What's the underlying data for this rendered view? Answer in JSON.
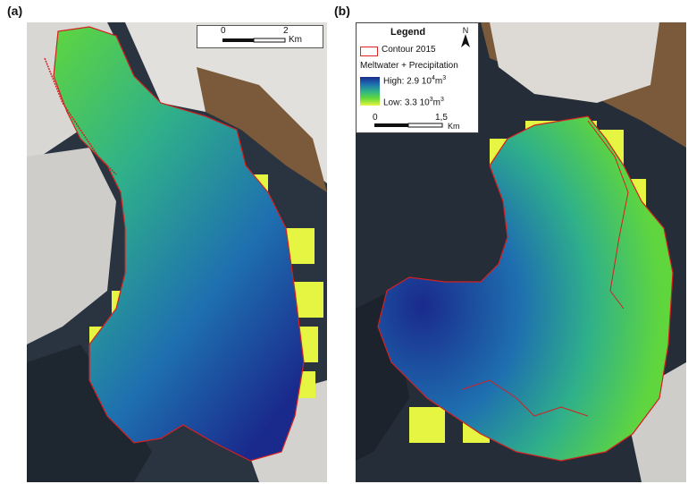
{
  "panels": [
    {
      "label": "(a)",
      "scalebar": {
        "ticks": [
          "0",
          "2"
        ],
        "unit": "Km"
      }
    },
    {
      "label": "(b)",
      "scalebar": {
        "ticks": [
          "0",
          "1,5"
        ],
        "unit": "Km"
      },
      "legend": {
        "title": "Legend",
        "north": "N",
        "contour_label": "Contour 2015",
        "variable": "Meltwater + Precipitation",
        "high_label": "High: 2.9 10",
        "high_exp": "4",
        "high_unit": "m",
        "high_unit_exp": "3",
        "low_label": "Low: 3.3 10",
        "low_exp": "3",
        "low_unit": "m",
        "low_unit_exp": "3"
      }
    }
  ],
  "colors": {
    "contour": "#d42020",
    "high": "#1a2a8c",
    "mid": "#2fb08a",
    "low": "#e6f542",
    "rock": "#2a3440",
    "snow": "#e6e4e2",
    "moraine": "#7a5a3a"
  }
}
